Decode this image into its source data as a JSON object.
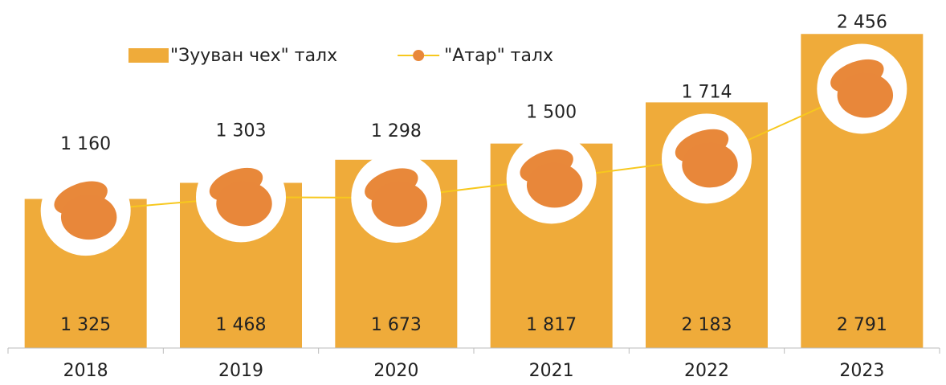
{
  "chart_data": {
    "type": "bar",
    "categories": [
      "2018",
      "2019",
      "2020",
      "2021",
      "2022",
      "2023"
    ],
    "series": [
      {
        "name": "\"Зууван чех\" талх",
        "type": "bar",
        "color": "#efab3a",
        "values": [
          1325,
          1468,
          1673,
          1817,
          2183,
          2791
        ],
        "value_labels": [
          "1 325",
          "1 468",
          "1 673",
          "1 817",
          "2 183",
          "2 791"
        ]
      },
      {
        "name": "\"Атар\" талх",
        "type": "line",
        "axis": "y2",
        "color": "#f7c81e",
        "values": [
          1160,
          1303,
          1298,
          1500,
          1714,
          2456
        ],
        "value_labels": [
          "1 160",
          "1 303",
          "1 298",
          "1 500",
          "1 714",
          "2 456"
        ]
      }
    ],
    "ylim": [
      0,
      2800
    ],
    "y2lim": [
      -300,
      3050
    ],
    "legend": "top",
    "grid": false
  }
}
